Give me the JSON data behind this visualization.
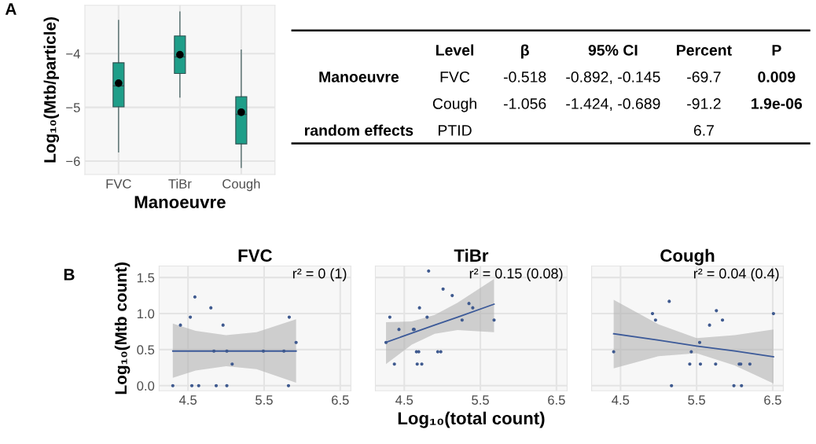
{
  "chart_data": [
    {
      "type": "box",
      "xlabel": "Manoeuvre",
      "ylabel": "Log₁₀(Mtb/particle)",
      "annotations": [
        "A"
      ],
      "categories": [
        "FVC",
        "TiBr",
        "Cough"
      ],
      "color": "#1f9e89",
      "grid": true,
      "ylim": [
        -6.25,
        -3.1
      ],
      "yticks": [
        {
          "value": -6,
          "label": "−6"
        },
        {
          "value": -5,
          "label": "−5"
        },
        {
          "value": -4,
          "label": "−4"
        }
      ],
      "boxes": [
        {
          "low": -5.83,
          "q1": -4.99,
          "median": -4.6,
          "q3": -4.17,
          "high": -3.38,
          "mean": -4.55
        },
        {
          "low": -4.81,
          "q1": -4.37,
          "median": -4.06,
          "q3": -3.67,
          "high": -3.22,
          "mean": -4.02
        },
        {
          "low": -6.12,
          "q1": -5.68,
          "median": -5.13,
          "q3": -4.8,
          "high": -3.93,
          "mean": -5.09
        }
      ]
    },
    {
      "type": "other",
      "annotations": [
        "Level",
        "β",
        "95% CI",
        "Percent",
        "P",
        "Manoeuvre",
        "FVC",
        "-0.518",
        "-0.892, -0.145",
        "-69.7",
        "0.009",
        "Cough",
        "-1.056",
        "-1.424, -0.689",
        "-91.2",
        "1.9e-06",
        "random effects",
        "PTID",
        "6.7"
      ]
    },
    {
      "type": "scatter",
      "title": "FVC",
      "ylabel": "Log₁₀(Mtb count)",
      "annotations": [
        "B",
        "r² = 0 (1)"
      ],
      "grid": true,
      "xlim": [
        4.12,
        6.64
      ],
      "xticks": [
        4.5,
        5.5,
        6.5
      ],
      "ylim": [
        -0.07,
        1.66
      ],
      "yticks": [
        {
          "value": 0,
          "label": "0.0"
        },
        {
          "value": 0.5,
          "label": "0.5"
        },
        {
          "value": 1,
          "label": "1.0"
        },
        {
          "value": 1.5,
          "label": "1.5"
        }
      ],
      "series": [
        {
          "type": "scatter",
          "color": "#3f5a8f",
          "x": [
            4.3,
            4.4,
            4.53,
            4.59,
            4.55,
            4.64,
            4.8,
            4.87,
            4.84,
            4.96,
            5.01,
            5.01,
            5.08,
            5.49,
            5.76,
            5.83,
            5.82,
            5.92
          ],
          "values": [
            0,
            0.84,
            0.95,
            1.23,
            0,
            0,
            1.08,
            0,
            0.48,
            0.84,
            0.48,
            0,
            0.3,
            0.48,
            0.48,
            0.95,
            0,
            0.6
          ]
        },
        {
          "type": "line",
          "color": "#3c5a99",
          "x": [
            4.3,
            4.6,
            5.0,
            5.4,
            5.92
          ],
          "values": [
            0.48,
            0.48,
            0.48,
            0.48,
            0.48
          ],
          "lower": [
            0.11,
            0.21,
            0.27,
            0.23,
            0.04
          ],
          "upper": [
            0.86,
            0.76,
            0.7,
            0.74,
            0.92
          ]
        }
      ]
    },
    {
      "type": "scatter",
      "title": "TiBr",
      "xlabel": "Log₁₀(total count)",
      "annotations": [
        "r² = 0.15 (0.08)"
      ],
      "grid": true,
      "tick_labels": "x",
      "xlim": [
        4.12,
        6.64
      ],
      "xticks": [
        4.5,
        5.5,
        6.5
      ],
      "ylim": [
        -0.07,
        1.66
      ],
      "yticks": [
        0,
        0.5,
        1,
        1.5
      ],
      "series": [
        {
          "type": "scatter",
          "color": "#3f5a8f",
          "x": [
            4.26,
            4.31,
            4.37,
            4.43,
            4.62,
            4.63,
            4.66,
            4.69,
            4.67,
            4.73,
            4.7,
            4.8,
            4.82,
            4.94,
            4.98,
            5.01,
            5.13,
            5.26,
            5.35,
            5.4,
            5.68
          ],
          "values": [
            0.6,
            0.95,
            0.3,
            0.78,
            0.78,
            0.78,
            0.47,
            0.47,
            0.3,
            0.3,
            1.08,
            0.95,
            1.59,
            0.47,
            0.47,
            1.34,
            1.25,
            0.91,
            1.14,
            1.08,
            0.91
          ]
        },
        {
          "type": "line",
          "color": "#3c5a99",
          "x": [
            4.26,
            4.6,
            4.9,
            5.2,
            5.68
          ],
          "values": [
            0.6,
            0.73,
            0.84,
            0.95,
            1.13
          ],
          "lower": [
            0.3,
            0.57,
            0.72,
            0.77,
            0.74
          ],
          "upper": [
            0.88,
            0.89,
            0.98,
            1.15,
            1.48
          ]
        }
      ]
    },
    {
      "type": "scatter",
      "title": "Cough",
      "annotations": [
        "r² = 0.04 (0.4)"
      ],
      "grid": true,
      "tick_labels": "x",
      "xlim": [
        4.12,
        6.64
      ],
      "xticks": [
        4.5,
        5.5,
        6.5
      ],
      "ylim": [
        -0.07,
        1.66
      ],
      "yticks": [
        0,
        0.5,
        1,
        1.5
      ],
      "series": [
        {
          "type": "scatter",
          "color": "#3f5a8f",
          "x": [
            4.41,
            4.92,
            4.96,
            5.14,
            5.17,
            5.41,
            5.43,
            5.55,
            5.54,
            5.67,
            5.75,
            5.76,
            5.84,
            5.99,
            6.06,
            6.08,
            6.09,
            6.2,
            6.51
          ],
          "values": [
            0.47,
            1.0,
            0.91,
            1.17,
            0,
            0.3,
            0.47,
            0.3,
            0.6,
            0.84,
            0.3,
            1.04,
            0.91,
            0,
            0.3,
            0.3,
            0,
            0.3,
            1.0
          ]
        },
        {
          "type": "line",
          "color": "#3c5a99",
          "x": [
            4.41,
            5.0,
            5.5,
            6.0,
            6.51
          ],
          "values": [
            0.72,
            0.63,
            0.55,
            0.48,
            0.4
          ],
          "lower": [
            0.24,
            0.41,
            0.45,
            0.28,
            0.03
          ],
          "upper": [
            1.19,
            0.85,
            0.66,
            0.7,
            0.78
          ]
        }
      ]
    }
  ]
}
